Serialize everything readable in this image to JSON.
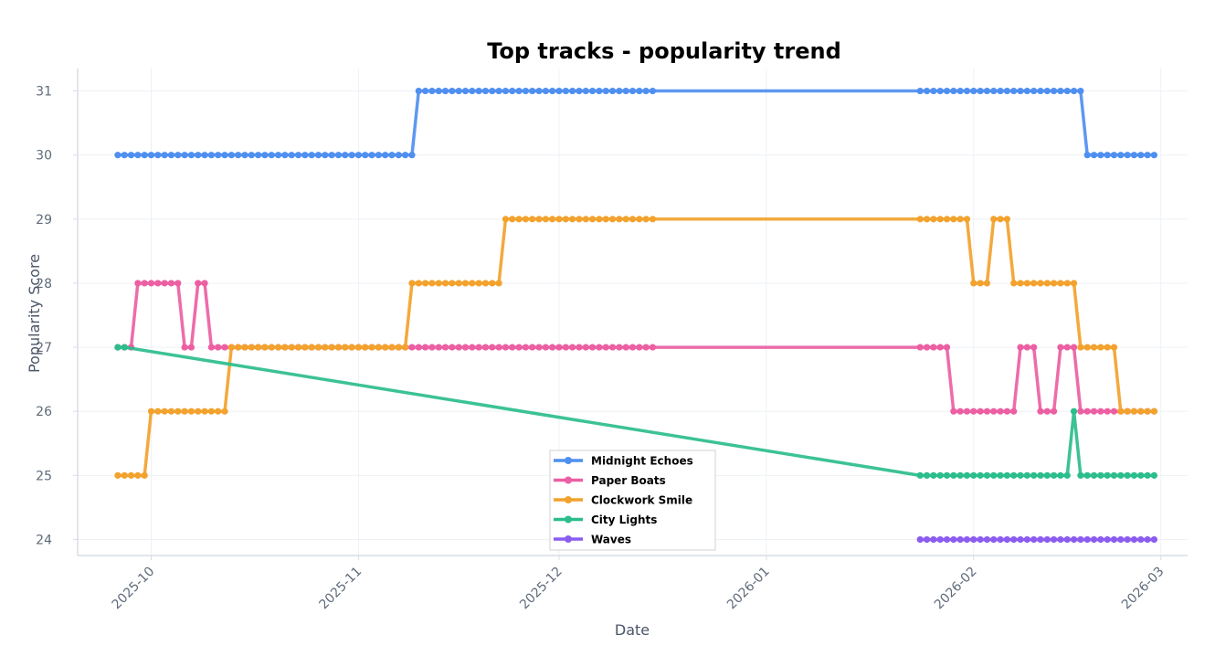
{
  "chart_data": {
    "type": "line",
    "title": "Top tracks - popularity trend",
    "xlabel": "Date",
    "ylabel": "Popularity Score",
    "xlim": [
      "2025-09-20",
      "2026-03-05"
    ],
    "ylim": [
      23.75,
      31.35
    ],
    "x_ticks": [
      "2025-10",
      "2025-11",
      "2025-12",
      "2026-01",
      "2026-02",
      "2026-03"
    ],
    "y_ticks": [
      24,
      25,
      26,
      27,
      28,
      29,
      30,
      31
    ],
    "grid": true,
    "legend_position": "lower-center",
    "series": [
      {
        "name": "Midnight Echoes",
        "color": "#4f8ff0",
        "segments": [
          {
            "start": "2025-09-26",
            "end": "2025-11-09",
            "y": 30
          },
          {
            "start": "2025-11-10",
            "end": "2025-12-15",
            "y": 31
          },
          {
            "start": "2026-01-24",
            "end": "2026-02-17",
            "y": 31
          },
          {
            "start": "2026-02-18",
            "end": "2026-02-28",
            "y": 30
          }
        ]
      },
      {
        "name": "Paper Boats",
        "color": "#ec5fa3",
        "segments": [
          {
            "start": "2025-09-26",
            "end": "2025-09-28",
            "y": 27
          },
          {
            "start": "2025-09-29",
            "end": "2025-10-05",
            "y": 28
          },
          {
            "start": "2025-10-06",
            "end": "2025-10-07",
            "y": 27
          },
          {
            "start": "2025-10-08",
            "end": "2025-10-09",
            "y": 28
          },
          {
            "start": "2025-10-10",
            "end": "2025-12-15",
            "y": 27
          },
          {
            "start": "2026-01-24",
            "end": "2026-01-28",
            "y": 27
          },
          {
            "start": "2026-01-29",
            "end": "2026-02-07",
            "y": 26
          },
          {
            "start": "2026-02-08",
            "end": "2026-02-10",
            "y": 27
          },
          {
            "start": "2026-02-11",
            "end": "2026-02-13",
            "y": 26
          },
          {
            "start": "2026-02-14",
            "end": "2026-02-16",
            "y": 27
          },
          {
            "start": "2026-02-17",
            "end": "2026-02-28",
            "y": 26
          }
        ]
      },
      {
        "name": "Clockwork Smile",
        "color": "#f2a22d",
        "segments": [
          {
            "start": "2025-09-26",
            "end": "2025-09-30",
            "y": 25
          },
          {
            "start": "2025-10-01",
            "end": "2025-10-12",
            "y": 26
          },
          {
            "start": "2025-10-13",
            "end": "2025-11-08",
            "y": 27
          },
          {
            "start": "2025-11-09",
            "end": "2025-11-22",
            "y": 28
          },
          {
            "start": "2025-11-23",
            "end": "2025-12-15",
            "y": 29
          },
          {
            "start": "2026-01-24",
            "end": "2026-01-31",
            "y": 29
          },
          {
            "start": "2026-02-01",
            "end": "2026-02-03",
            "y": 28
          },
          {
            "start": "2026-02-04",
            "end": "2026-02-06",
            "y": 29
          },
          {
            "start": "2026-02-07",
            "end": "2026-02-16",
            "y": 28
          },
          {
            "start": "2026-02-17",
            "end": "2026-02-22",
            "y": 27
          },
          {
            "start": "2026-02-23",
            "end": "2026-02-28",
            "y": 26
          }
        ]
      },
      {
        "name": "City Lights",
        "color": "#2bbd8c",
        "segments": [
          {
            "start": "2025-09-26",
            "end": "2025-09-27",
            "y": 27
          },
          {
            "start": "2026-01-24",
            "end": "2026-02-15",
            "y": 25
          },
          {
            "start": "2026-02-16",
            "end": "2026-02-16",
            "y": 26
          },
          {
            "start": "2026-02-17",
            "end": "2026-02-28",
            "y": 25
          }
        ]
      },
      {
        "name": "Waves",
        "color": "#8b5cf0",
        "segments": [
          {
            "start": "2026-01-24",
            "end": "2026-02-28",
            "y": 24
          }
        ]
      }
    ]
  }
}
